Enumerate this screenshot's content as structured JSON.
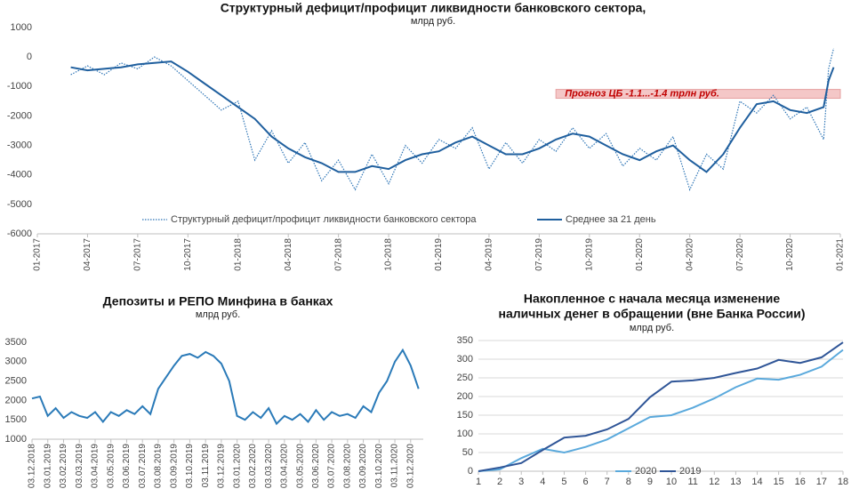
{
  "chart_data": [
    {
      "type": "line",
      "title": "Структурный дефицит/профицит ликвидности банковского сектора,",
      "subtitle": "млрд руб.",
      "x": [
        2,
        3,
        4,
        5,
        6,
        7,
        8,
        9,
        10,
        11,
        12,
        13,
        14,
        15,
        16,
        17,
        18,
        19,
        20,
        21,
        22,
        23,
        24,
        25,
        26,
        27,
        28,
        29,
        30,
        31,
        32,
        33,
        34,
        35,
        36,
        37,
        38,
        39,
        40,
        41,
        42,
        43,
        44,
        45,
        46,
        47,
        47.3,
        47.6
      ],
      "series": [
        {
          "name": "Структурный дефицит/профицит ликвидности банковского сектора",
          "color": "#2e75b6",
          "style": "dotted",
          "values": [
            -600,
            -300,
            -600,
            -200,
            -400,
            0,
            -300,
            -800,
            -1300,
            -1800,
            -1500,
            -3500,
            -2500,
            -3600,
            -2900,
            -4200,
            -3500,
            -4500,
            -3300,
            -4300,
            -3000,
            -3600,
            -2800,
            -3100,
            -2400,
            -3800,
            -2900,
            -3600,
            -2800,
            -3200,
            -2400,
            -3100,
            -2600,
            -3700,
            -3100,
            -3500,
            -2700,
            -4500,
            -3300,
            -3800,
            -1500,
            -1900,
            -1300,
            -2100,
            -1700,
            -2800,
            -400,
            300
          ]
        },
        {
          "name": "Среднее за 21 день",
          "color": "#1f5f9e",
          "style": "solid",
          "values": [
            -350,
            -450,
            -400,
            -350,
            -250,
            -200,
            -150,
            -500,
            -900,
            -1300,
            -1700,
            -2100,
            -2700,
            -3100,
            -3400,
            -3600,
            -3900,
            -3900,
            -3700,
            -3800,
            -3500,
            -3300,
            -3200,
            -2900,
            -2700,
            -3000,
            -3300,
            -3300,
            -3100,
            -2800,
            -2600,
            -2700,
            -3000,
            -3300,
            -3500,
            -3200,
            -3000,
            -3500,
            -3900,
            -3300,
            -2400,
            -1600,
            -1500,
            -1800,
            -1900,
            -1700,
            -800,
            -350
          ]
        }
      ],
      "band": {
        "label": "Прогноз ЦБ -1.1...-1.4 трлн руб.",
        "color": "#f4c7c7",
        "xlim": [
          31,
          48
        ],
        "ylim": [
          -1400,
          -1100
        ]
      },
      "xlim": [
        0,
        48
      ],
      "xticks": [
        {
          "value": 0,
          "label": "01-2017"
        },
        {
          "value": 3,
          "label": "04-2017"
        },
        {
          "value": 6,
          "label": "07-2017"
        },
        {
          "value": 9,
          "label": "10-2017"
        },
        {
          "value": 12,
          "label": "01-2018"
        },
        {
          "value": 15,
          "label": "04-2018"
        },
        {
          "value": 18,
          "label": "07-2018"
        },
        {
          "value": 21,
          "label": "10-2018"
        },
        {
          "value": 24,
          "label": "01-2019"
        },
        {
          "value": 27,
          "label": "04-2019"
        },
        {
          "value": 30,
          "label": "07-2019"
        },
        {
          "value": 33,
          "label": "10-2019"
        },
        {
          "value": 36,
          "label": "01-2020"
        },
        {
          "value": 39,
          "label": "04-2020"
        },
        {
          "value": 42,
          "label": "07-2020"
        },
        {
          "value": 45,
          "label": "10-2020"
        },
        {
          "value": 48,
          "label": "01-2021"
        }
      ],
      "ylim": [
        -6000,
        1000
      ],
      "yticks": [
        -6000,
        -5000,
        -4000,
        -3000,
        -2000,
        -1000,
        0,
        1000
      ],
      "grid": false
    },
    {
      "type": "line",
      "title": "Депозиты и РЕПО Минфина в банках",
      "subtitle": "млрд руб.",
      "x": [
        0,
        0.5,
        1,
        1.5,
        2,
        2.5,
        3,
        3.5,
        4,
        4.5,
        5,
        5.5,
        6,
        6.5,
        7,
        7.5,
        8,
        8.5,
        9,
        9.5,
        10,
        10.5,
        11,
        11.5,
        12,
        12.5,
        13,
        13.5,
        14,
        14.5,
        15,
        15.5,
        16,
        16.5,
        17,
        17.5,
        18,
        18.5,
        19,
        19.5,
        20,
        20.5,
        21,
        21.5,
        22,
        22.5,
        23,
        23.5,
        24,
        24.5
      ],
      "series": [
        {
          "name": null,
          "color": "#2a7ab8",
          "style": "solid",
          "values": [
            2050,
            2100,
            1600,
            1800,
            1550,
            1700,
            1600,
            1550,
            1700,
            1450,
            1700,
            1600,
            1750,
            1650,
            1850,
            1650,
            2300,
            2600,
            2900,
            3150,
            3200,
            3100,
            3250,
            3150,
            2950,
            2500,
            1600,
            1500,
            1700,
            1550,
            1800,
            1400,
            1600,
            1500,
            1650,
            1450,
            1750,
            1500,
            1700,
            1600,
            1650,
            1550,
            1850,
            1700,
            2200,
            2500,
            3000,
            3300,
            2900,
            2300
          ]
        }
      ],
      "xlim": [
        0,
        24.8
      ],
      "xticks": [
        {
          "value": 0,
          "label": "03.12.2018"
        },
        {
          "value": 1,
          "label": "03.01.2019"
        },
        {
          "value": 2,
          "label": "03.02.2019"
        },
        {
          "value": 3,
          "label": "03.03.2019"
        },
        {
          "value": 4,
          "label": "03.04.2019"
        },
        {
          "value": 5,
          "label": "03.05.2019"
        },
        {
          "value": 6,
          "label": "03.06.2019"
        },
        {
          "value": 7,
          "label": "03.07.2019"
        },
        {
          "value": 8,
          "label": "03.08.2019"
        },
        {
          "value": 9,
          "label": "03.09.2019"
        },
        {
          "value": 10,
          "label": "03.10.2019"
        },
        {
          "value": 11,
          "label": "03.11.2019"
        },
        {
          "value": 12,
          "label": "03.12.2019"
        },
        {
          "value": 13,
          "label": "03.01.2020"
        },
        {
          "value": 14,
          "label": "03.02.2020"
        },
        {
          "value": 15,
          "label": "03.03.2020"
        },
        {
          "value": 16,
          "label": "03.04.2020"
        },
        {
          "value": 17,
          "label": "03.05.2020"
        },
        {
          "value": 18,
          "label": "03.06.2020"
        },
        {
          "value": 19,
          "label": "03.07.2020"
        },
        {
          "value": 20,
          "label": "03.08.2020"
        },
        {
          "value": 21,
          "label": "03.09.2020"
        },
        {
          "value": 22,
          "label": "03.10.2020"
        },
        {
          "value": 23,
          "label": "03.11.2020"
        },
        {
          "value": 24,
          "label": "03.12.2020"
        }
      ],
      "ylim": [
        1000,
        3500
      ],
      "yticks": [
        1000,
        1500,
        2000,
        2500,
        3000,
        3500
      ],
      "grid": false
    },
    {
      "type": "line",
      "title": [
        "Накопленное с начала месяца изменение",
        "наличных денег в обращении (вне Банка России)"
      ],
      "subtitle": "млрд руб.",
      "x": [
        1,
        2,
        3,
        4,
        5,
        6,
        7,
        8,
        9,
        10,
        11,
        12,
        13,
        14,
        15,
        16,
        17,
        18
      ],
      "series": [
        {
          "name": "2020",
          "color": "#5aa9dc",
          "style": "solid",
          "values": [
            0,
            5,
            35,
            60,
            50,
            65,
            85,
            115,
            145,
            150,
            170,
            195,
            225,
            248,
            245,
            258,
            280,
            325
          ]
        },
        {
          "name": "2019",
          "color": "#2f5597",
          "style": "solid",
          "values": [
            0,
            10,
            22,
            57,
            90,
            95,
            112,
            140,
            198,
            240,
            243,
            250,
            263,
            275,
            298,
            290,
            305,
            345
          ]
        }
      ],
      "xlim": [
        1,
        18
      ],
      "xticks": [
        1,
        2,
        3,
        4,
        5,
        6,
        7,
        8,
        9,
        10,
        11,
        12,
        13,
        14,
        15,
        16,
        17,
        18
      ],
      "ylim": [
        0,
        350
      ],
      "yticks": [
        0,
        50,
        100,
        150,
        200,
        250,
        300,
        350
      ],
      "grid": true
    }
  ]
}
